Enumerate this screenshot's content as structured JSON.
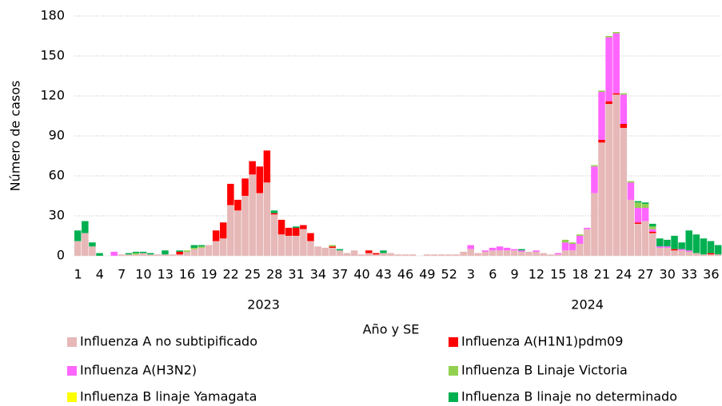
{
  "chart_data": {
    "type": "stacked_bar",
    "ylabel": "Número de casos",
    "xlabel": "Año y SE",
    "ylim": [
      0,
      180
    ],
    "yticks": [
      0,
      30,
      60,
      90,
      120,
      150,
      180
    ],
    "grid": true,
    "category_groups": [
      {
        "label": "2023",
        "categories": [
          "1",
          null,
          null,
          "4",
          null,
          null,
          "7",
          null,
          null,
          "10",
          null,
          null,
          "13",
          null,
          null,
          "16",
          null,
          null,
          "19",
          null,
          null,
          "22",
          null,
          null,
          "25",
          null,
          null,
          "28",
          null,
          null,
          "31",
          null,
          null,
          "34",
          null,
          null,
          "37",
          null,
          null,
          "40",
          null,
          null,
          "43",
          null,
          null,
          "46",
          null,
          null,
          "49",
          null,
          null,
          "52"
        ]
      },
      {
        "label": "2024",
        "categories": [
          null,
          null,
          "3",
          null,
          null,
          "6",
          null,
          null,
          "9",
          null,
          null,
          "12",
          null,
          null,
          "15",
          null,
          null,
          "18",
          null,
          null,
          "21",
          null,
          null,
          "24",
          null,
          null,
          "27",
          null,
          null,
          "30",
          null,
          null,
          "33",
          null,
          null,
          "36",
          null
        ]
      }
    ],
    "series": [
      {
        "name": "Influenza A no subtipificado",
        "color": "#e6b8b7",
        "values": [
          11,
          17,
          7,
          0,
          0,
          0,
          1,
          1,
          1,
          2,
          1,
          1,
          1,
          1,
          1,
          3,
          5,
          6,
          8,
          11,
          13,
          38,
          34,
          45,
          61,
          47,
          55,
          31,
          16,
          15,
          15,
          20,
          11,
          7,
          6,
          6,
          4,
          2,
          4,
          1,
          2,
          1,
          2,
          2,
          1,
          1,
          1,
          0,
          1,
          1,
          1,
          1,
          1,
          3,
          5,
          2,
          3,
          4,
          4,
          4,
          4,
          3,
          3,
          3,
          2,
          1,
          1,
          4,
          4,
          9,
          20,
          47,
          85,
          114,
          121,
          96,
          42,
          24,
          26,
          17,
          6,
          6,
          4,
          4,
          3,
          2,
          1,
          1,
          1
        ]
      },
      {
        "name": "Influenza A(H1N1)pdm09",
        "color": "#ff0000",
        "values": [
          0,
          0,
          0,
          0,
          0,
          0,
          0,
          0,
          0,
          0,
          0,
          0,
          0,
          0,
          2,
          0,
          0,
          0,
          0,
          8,
          12,
          16,
          8,
          13,
          10,
          20,
          24,
          1,
          11,
          6,
          6,
          3,
          6,
          0,
          0,
          1,
          0,
          0,
          0,
          0,
          2,
          1,
          0,
          0,
          0,
          0,
          0,
          0,
          0,
          0,
          0,
          0,
          0,
          0,
          0,
          0,
          0,
          0,
          0,
          0,
          0,
          0,
          0,
          0,
          0,
          0,
          0,
          0,
          0,
          0,
          0,
          0,
          2,
          2,
          1,
          3,
          0,
          1,
          0,
          1,
          0,
          0,
          1,
          0,
          0,
          0,
          0,
          1,
          0
        ]
      },
      {
        "name": "Influenza A(H3N2)",
        "color": "#ff66ff",
        "values": [
          0,
          0,
          0,
          0,
          0,
          3,
          0,
          0,
          0,
          0,
          0,
          0,
          0,
          0,
          0,
          0,
          0,
          0,
          0,
          0,
          0,
          0,
          0,
          0,
          0,
          0,
          0,
          0,
          0,
          0,
          0,
          0,
          0,
          0,
          0,
          0,
          0,
          0,
          0,
          0,
          0,
          0,
          0,
          0,
          0,
          0,
          0,
          0,
          0,
          0,
          0,
          0,
          0,
          0,
          3,
          0,
          1,
          2,
          3,
          2,
          1,
          1,
          0,
          1,
          0,
          0,
          1,
          6,
          5,
          6,
          1,
          20,
          36,
          48,
          45,
          22,
          13,
          11,
          10,
          2,
          1,
          1,
          0,
          1,
          1,
          0,
          0,
          0,
          0
        ]
      },
      {
        "name": "Influenza B Linaje Victoria",
        "color": "#92d050",
        "values": [
          0,
          0,
          0,
          0,
          0,
          0,
          0,
          0,
          1,
          0,
          0,
          0,
          0,
          0,
          0,
          1,
          1,
          1,
          0,
          0,
          0,
          0,
          0,
          0,
          0,
          0,
          0,
          0,
          0,
          0,
          0,
          0,
          0,
          0,
          0,
          1,
          0,
          0,
          0,
          0,
          0,
          0,
          0,
          0,
          0,
          0,
          0,
          0,
          0,
          0,
          0,
          0,
          0,
          0,
          0,
          0,
          0,
          0,
          0,
          0,
          0,
          0,
          0,
          0,
          0,
          0,
          0,
          2,
          1,
          1,
          0,
          1,
          1,
          1,
          1,
          1,
          1,
          4,
          3,
          2,
          0,
          0,
          0,
          0,
          0,
          0,
          0,
          0,
          0
        ]
      },
      {
        "name": "Influenza B linaje Yamagata",
        "color": "#ffff00",
        "values": [
          0,
          0,
          0,
          0,
          0,
          0,
          0,
          0,
          0,
          0,
          0,
          0,
          0,
          0,
          0,
          0,
          0,
          0,
          0,
          0,
          0,
          0,
          0,
          0,
          0,
          0,
          0,
          0,
          0,
          0,
          0,
          0,
          0,
          0,
          0,
          0,
          0,
          0,
          0,
          0,
          0,
          0,
          0,
          0,
          0,
          0,
          0,
          0,
          0,
          0,
          0,
          0,
          0,
          0,
          0,
          0,
          0,
          0,
          0,
          0,
          0,
          0,
          0,
          0,
          0,
          0,
          0,
          0,
          0,
          0,
          0,
          0,
          0,
          0,
          0,
          0,
          0,
          0,
          0,
          0,
          0,
          0,
          0,
          0,
          0,
          0,
          0,
          0,
          0
        ]
      },
      {
        "name": "Influenza B linaje no determinado",
        "color": "#00b050",
        "values": [
          8,
          9,
          3,
          2,
          0,
          0,
          0,
          1,
          1,
          1,
          1,
          0,
          3,
          0,
          1,
          0,
          2,
          1,
          0,
          0,
          0,
          0,
          0,
          0,
          0,
          0,
          0,
          2,
          0,
          0,
          1,
          0,
          0,
          0,
          0,
          0,
          1,
          0,
          0,
          0,
          0,
          0,
          2,
          0,
          0,
          0,
          0,
          0,
          0,
          0,
          0,
          0,
          0,
          0,
          0,
          0,
          0,
          0,
          0,
          0,
          0,
          1,
          0,
          0,
          0,
          0,
          0,
          0,
          0,
          0,
          0,
          0,
          0,
          0,
          0,
          0,
          0,
          1,
          1,
          2,
          6,
          5,
          10,
          5,
          15,
          14,
          12,
          9,
          7
        ]
      }
    ]
  }
}
